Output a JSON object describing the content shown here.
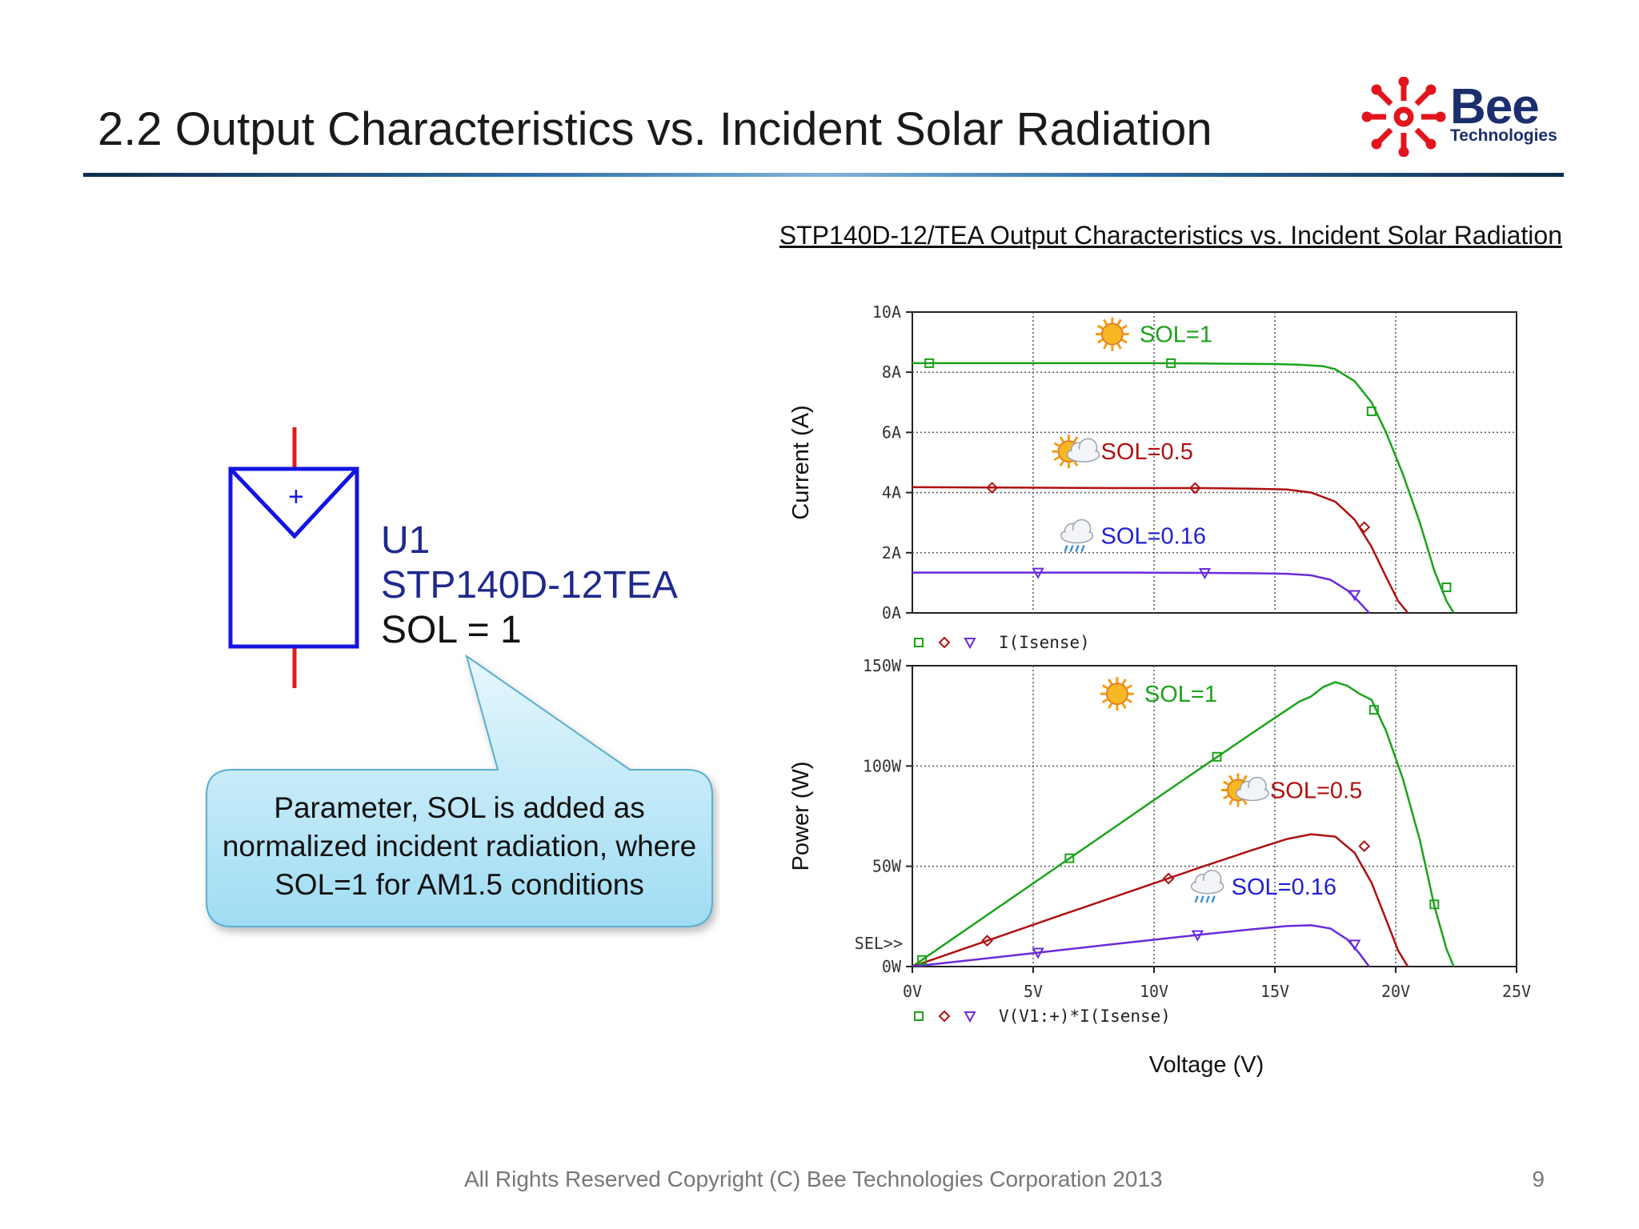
{
  "slide": {
    "title": "2.2 Output Characteristics vs. Incident Solar Radiation",
    "chart_heading": "STP140D-12/TEA Output Characteristics vs. Incident Solar Radiation",
    "footer": "All Rights Reserved Copyright (C) Bee Technologies Corporation 2013",
    "page_number": "9"
  },
  "logo": {
    "word": "Bee",
    "sub": "Technologies",
    "icon": "bee-star-logo-icon",
    "color": "#e3151c"
  },
  "symbol": {
    "plus_sign": "+",
    "ref": "U1",
    "model": "STP140D-12TEA",
    "param": "SOL = 1",
    "icon": "solar-cell-symbol-icon"
  },
  "callout": {
    "text": "Parameter, SOL is added as normalized incident radiation, where SOL=1 for AM1.5 conditions"
  },
  "chart_data": [
    {
      "type": "line",
      "ylabel": "Current (A)",
      "xlabel": "",
      "xlim": [
        0,
        25
      ],
      "ylim": [
        0,
        10
      ],
      "x_tick_labels": [],
      "y_tick_labels": [
        "0A",
        "2A",
        "4A",
        "6A",
        "8A",
        "10A"
      ],
      "grid": true,
      "legend": {
        "text": "I(Isense)",
        "placement": "below-plot"
      },
      "annotations": [
        {
          "text": "SOL=1",
          "icon": "sun-icon",
          "x": 9.4,
          "y": 9.0,
          "color": "#1aa31a"
        },
        {
          "text": "SOL=0.5",
          "icon": "sun-cloud-icon",
          "x": 7.8,
          "y": 5.1,
          "color": "#b01010"
        },
        {
          "text": "SOL=0.16",
          "icon": "rain-cloud-icon",
          "x": 7.8,
          "y": 2.3,
          "color": "#1f1fd0"
        }
      ],
      "series": [
        {
          "color": "#1aa31a",
          "marker": "square",
          "x": [
            0,
            2,
            5,
            8,
            10,
            12,
            14,
            15,
            16,
            17,
            17.5,
            18.3,
            19,
            19.6,
            20.3,
            21,
            21.6,
            22.1,
            22.4
          ],
          "y": [
            8.3,
            8.3,
            8.3,
            8.3,
            8.3,
            8.29,
            8.28,
            8.27,
            8.25,
            8.2,
            8.1,
            7.7,
            7.0,
            6.0,
            4.6,
            3.0,
            1.4,
            0.4,
            0
          ]
        },
        {
          "color": "#b01010",
          "marker": "diamond",
          "x": [
            0,
            3,
            6,
            9,
            12,
            14,
            15.5,
            16.5,
            17.5,
            18.3,
            19,
            19.6,
            20.1,
            20.5
          ],
          "y": [
            4.18,
            4.17,
            4.16,
            4.15,
            4.15,
            4.13,
            4.1,
            4.0,
            3.7,
            3.1,
            2.2,
            1.2,
            0.4,
            0
          ]
        },
        {
          "color": "#6a2bd9",
          "marker": "triangle-down",
          "x": [
            0,
            3,
            6,
            9,
            12,
            14,
            15.5,
            16.5,
            17.3,
            18,
            18.5,
            18.9
          ],
          "y": [
            1.34,
            1.34,
            1.34,
            1.34,
            1.33,
            1.32,
            1.3,
            1.25,
            1.1,
            0.75,
            0.35,
            0
          ]
        }
      ],
      "markers": [
        {
          "series": 0,
          "x": [
            0.7,
            10.7,
            19.0,
            22.1
          ],
          "y": [
            8.3,
            8.3,
            6.7,
            0.85
          ]
        },
        {
          "series": 1,
          "x": [
            3.3,
            11.7,
            18.7
          ],
          "y": [
            4.16,
            4.15,
            2.85
          ]
        },
        {
          "series": 2,
          "x": [
            5.2,
            12.1,
            18.3
          ],
          "y": [
            1.34,
            1.33,
            0.6
          ]
        }
      ]
    },
    {
      "type": "line",
      "ylabel": "Power (W)",
      "xlabel": "Voltage (V)",
      "xlim": [
        0,
        25
      ],
      "ylim": [
        0,
        150
      ],
      "x_tick_labels": [
        "0V",
        "5V",
        "10V",
        "15V",
        "20V",
        "25V"
      ],
      "y_tick_labels": [
        "0W",
        "50W",
        "100W",
        "150W"
      ],
      "sel_marker": "SEL>>",
      "grid": true,
      "legend": {
        "text": "V(V1:+)*I(Isense)",
        "placement": "below-plot"
      },
      "annotations": [
        {
          "text": "SOL=1",
          "icon": "sun-icon",
          "x": 9.6,
          "y": 132,
          "color": "#1aa31a"
        },
        {
          "text": "SOL=0.5",
          "icon": "sun-cloud-icon",
          "x": 14.8,
          "y": 84,
          "color": "#b01010"
        },
        {
          "text": "SOL=0.16",
          "icon": "rain-cloud-icon",
          "x": 13.2,
          "y": 36,
          "color": "#1f1fd0"
        }
      ],
      "series": [
        {
          "color": "#1aa31a",
          "marker": "square",
          "x": [
            0,
            2,
            5,
            8,
            10,
            12,
            14,
            15,
            16,
            16.5,
            17,
            17.5,
            18,
            18.5,
            19,
            19.6,
            20.3,
            21,
            21.6,
            22.1,
            22.4
          ],
          "y": [
            0,
            16.6,
            41.5,
            66.4,
            83,
            99.5,
            115.9,
            124,
            132,
            134.7,
            139.4,
            141.8,
            140,
            136,
            133,
            117.6,
            93.4,
            63,
            30.2,
            8.8,
            0
          ]
        },
        {
          "color": "#b01010",
          "marker": "diamond",
          "x": [
            0,
            3,
            6,
            9,
            12,
            14,
            15.5,
            16.5,
            17.5,
            18.3,
            19,
            19.6,
            20.1,
            20.5
          ],
          "y": [
            0,
            12.5,
            25,
            37.4,
            49.8,
            57.8,
            63.6,
            66,
            64.8,
            56.7,
            41.8,
            23.5,
            8,
            0
          ]
        },
        {
          "color": "#6a2bd9",
          "marker": "triangle-down",
          "x": [
            0,
            3,
            6,
            9,
            12,
            14,
            15.5,
            16.5,
            17.3,
            18,
            18.5,
            18.9
          ],
          "y": [
            0,
            4,
            8,
            12.1,
            16,
            18.5,
            20.2,
            20.6,
            19,
            13.5,
            6.5,
            0
          ]
        }
      ],
      "markers": [
        {
          "series": 0,
          "x": [
            0.4,
            6.5,
            12.6,
            19.1,
            21.6
          ],
          "y": [
            3.3,
            54,
            104.6,
            128,
            31
          ]
        },
        {
          "series": 1,
          "x": [
            3.1,
            10.6,
            18.7
          ],
          "y": [
            12.9,
            43.9,
            60
          ]
        },
        {
          "series": 2,
          "x": [
            5.2,
            11.8,
            18.3
          ],
          "y": [
            7,
            15.7,
            11
          ]
        }
      ]
    }
  ]
}
